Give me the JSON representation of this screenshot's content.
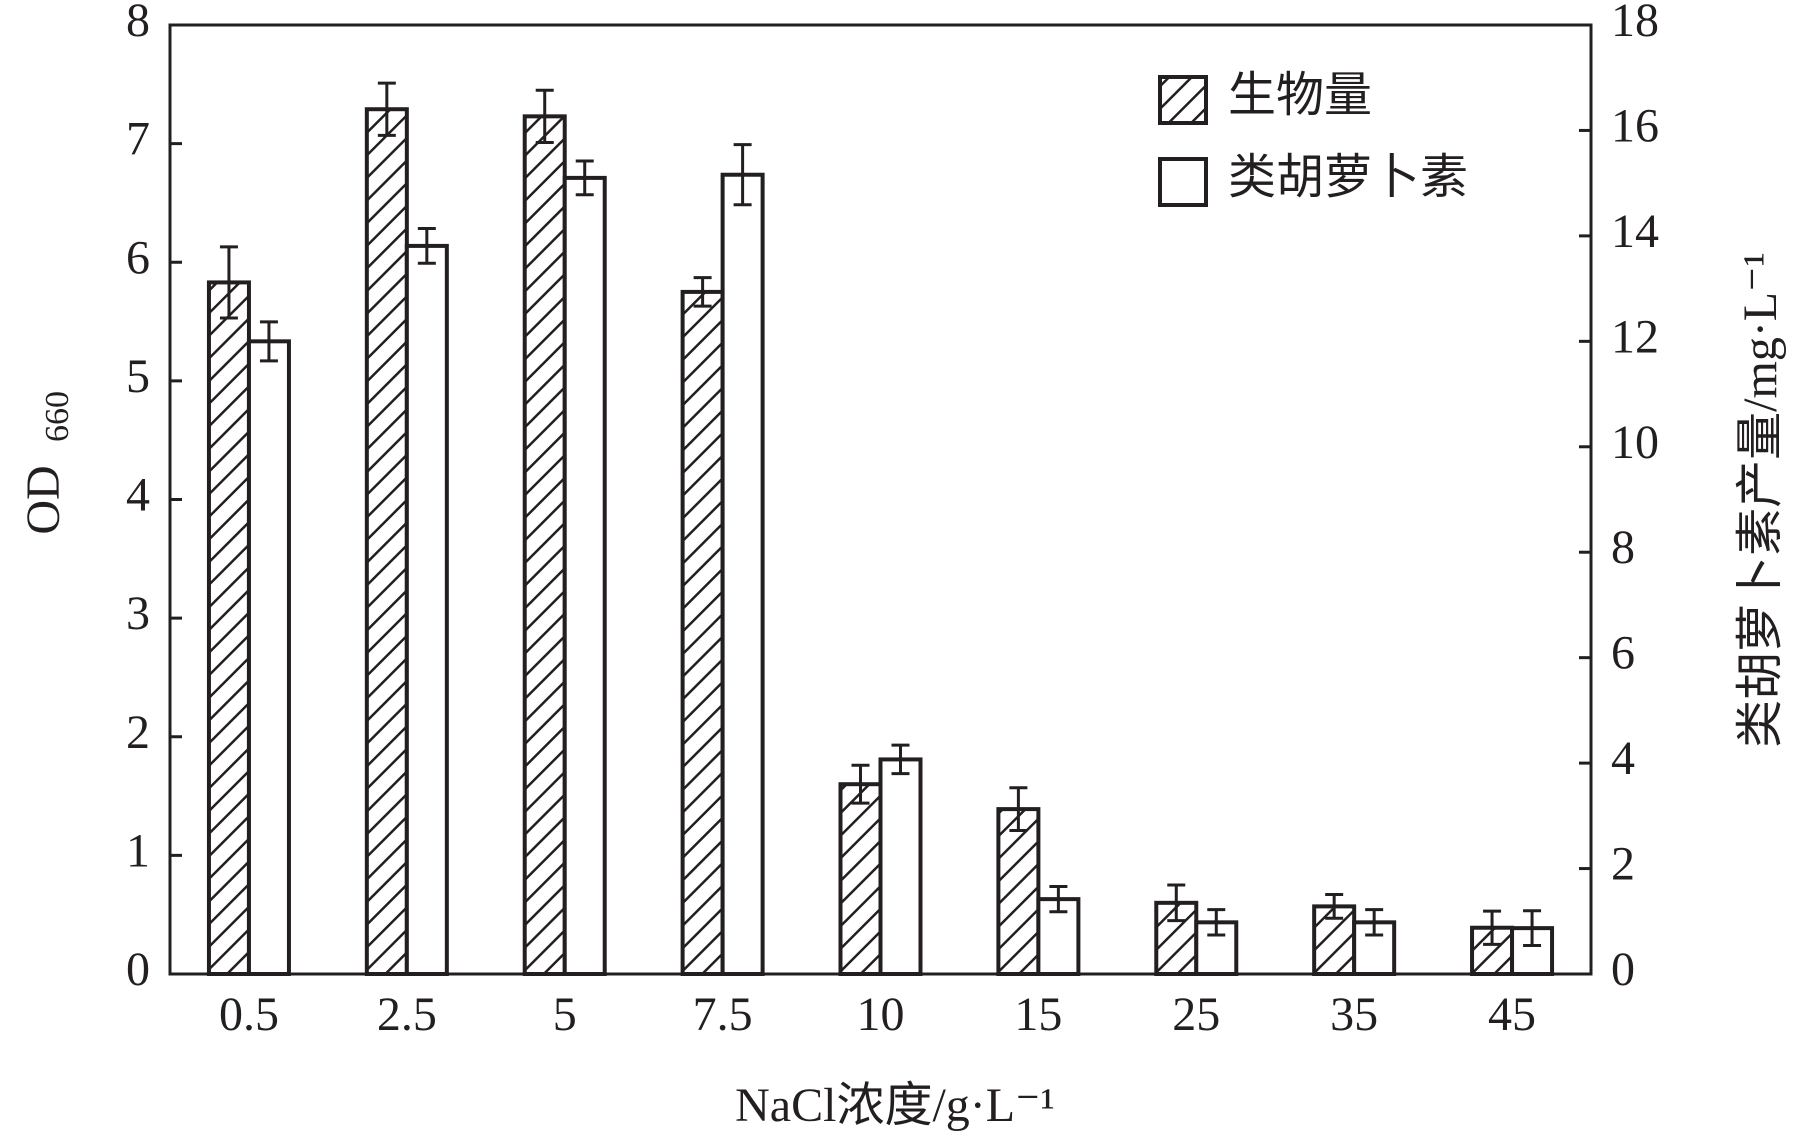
{
  "chart_data": {
    "type": "bar",
    "x_label": "NaCl浓度/g·L⁻¹",
    "y_label": "OD",
    "y_label_sub": "660",
    "y2_label": "类胡萝卜素产量/mg·L⁻¹",
    "categories": [
      "0.5",
      "2.5",
      "5",
      "7.5",
      "10",
      "15",
      "25",
      "35",
      "45"
    ],
    "series": [
      {
        "name": "生物量",
        "color": "#000000",
        "hatch": true,
        "axis": "y",
        "values": [
          5.83,
          7.29,
          7.23,
          5.75,
          1.6,
          1.39,
          0.6,
          0.57,
          0.39
        ],
        "errors": [
          0.3,
          0.22,
          0.22,
          0.12,
          0.16,
          0.18,
          0.15,
          0.1,
          0.14
        ]
      },
      {
        "name": "类胡萝卜素",
        "color": "#ffffff",
        "hatch": false,
        "axis": "y2",
        "values": [
          12.0,
          13.81,
          15.1,
          15.16,
          4.07,
          1.42,
          0.98,
          0.98,
          0.87
        ],
        "errors": [
          0.37,
          0.33,
          0.32,
          0.57,
          0.27,
          0.24,
          0.24,
          0.24,
          0.33
        ]
      }
    ],
    "ylim": [
      0,
      8
    ],
    "yticks": [
      0,
      1,
      2,
      3,
      4,
      5,
      6,
      7,
      8
    ],
    "y2lim": [
      0,
      18
    ],
    "y2ticks": [
      0,
      2,
      4,
      6,
      8,
      10,
      12,
      14,
      16,
      18
    ],
    "legend": "upper right"
  }
}
